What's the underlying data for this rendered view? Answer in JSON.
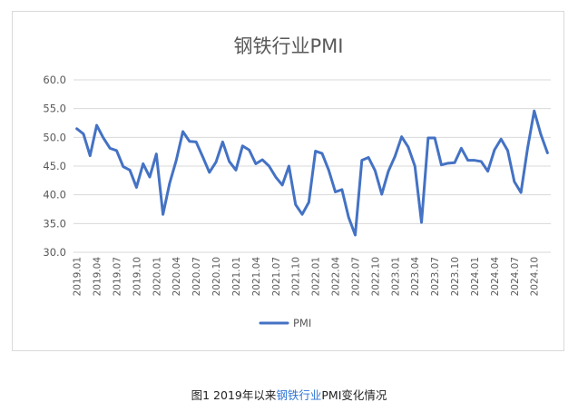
{
  "chart_data": {
    "type": "line",
    "title": "钢铁行业PMI",
    "xlabel": "",
    "ylabel": "",
    "ylim": [
      30,
      60
    ],
    "y_ticks": [
      "60.0",
      "55.0",
      "50.0",
      "45.0",
      "40.0",
      "35.0",
      "30.0"
    ],
    "x_tick_labels": [
      "2019.01",
      "2019.04",
      "2019.07",
      "2019.10",
      "2020.01",
      "2020.04",
      "2020.07",
      "2020.10",
      "2021.01",
      "2021.04",
      "2021.07",
      "2021.10",
      "2022.01",
      "2022.04",
      "2022.07",
      "2022.10",
      "2023.01",
      "2023.04",
      "2023.07",
      "2023.10",
      "2024.01",
      "2024.04",
      "2024.07",
      "2024.10"
    ],
    "grid": true,
    "legend": "bottom",
    "series": [
      {
        "name": "PMI",
        "color": "#4472c4",
        "values": [
          51.5,
          50.6,
          46.8,
          52.1,
          49.9,
          48.1,
          47.7,
          44.9,
          44.3,
          41.3,
          45.4,
          43.1,
          47.1,
          36.6,
          42.0,
          46.0,
          51.0,
          49.3,
          49.2,
          46.6,
          43.9,
          45.7,
          49.2,
          45.8,
          44.3,
          48.5,
          47.8,
          45.4,
          46.1,
          45.0,
          43.1,
          41.7,
          45.0,
          38.3,
          36.6,
          38.7,
          47.6,
          47.2,
          44.3,
          40.5,
          40.9,
          36.1,
          33.0,
          46.0,
          46.5,
          44.2,
          40.1,
          44.1,
          46.7,
          50.1,
          48.3,
          45.0,
          35.2,
          49.9,
          49.9,
          45.2,
          45.5,
          45.6,
          48.1,
          46.0,
          46.0,
          45.8,
          44.1,
          47.8,
          49.7,
          47.7,
          42.3,
          40.4,
          48.1,
          54.6,
          50.5,
          47.3
        ]
      }
    ]
  },
  "caption": {
    "prefix": "图1 2019年以来",
    "highlight": "钢铁行业",
    "suffix": "PMI变化情况"
  }
}
